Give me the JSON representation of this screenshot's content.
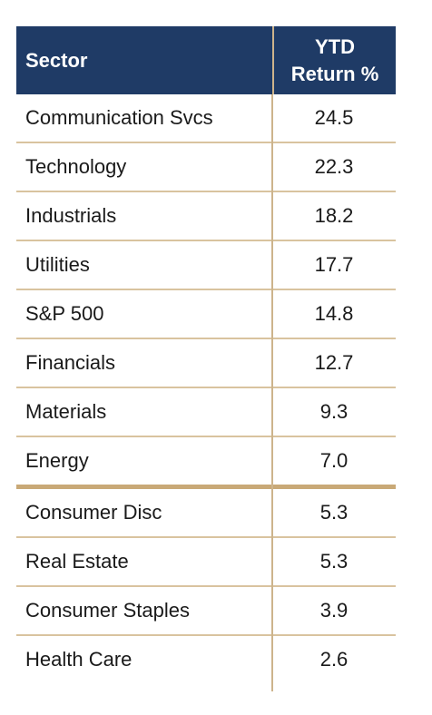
{
  "table": {
    "headers": {
      "sector": "Sector",
      "return_line1": "YTD",
      "return_line2": "Return %"
    },
    "group_top": [
      {
        "sector": "Communication  Svcs",
        "return": "24.5"
      },
      {
        "sector": "Technology",
        "return": "22.3"
      },
      {
        "sector": "Industrials",
        "return": "18.2"
      },
      {
        "sector": "Utilities",
        "return": "17.7"
      },
      {
        "sector": "S&P 500",
        "return": "14.8"
      },
      {
        "sector": "Financials",
        "return": "12.7"
      },
      {
        "sector": "Materials",
        "return": "9.3"
      },
      {
        "sector": "Energy",
        "return": "7.0"
      }
    ],
    "group_bottom": [
      {
        "sector": "Consumer Disc",
        "return": "5.3"
      },
      {
        "sector": "Real Estate",
        "return": "5.3"
      },
      {
        "sector": "Consumer Staples",
        "return": "3.9"
      },
      {
        "sector": "Health Care",
        "return": "2.6"
      }
    ]
  },
  "colors": {
    "header_bg": "#1f3b66",
    "rule": "#d9c39f",
    "thick_rule": "#c9a977"
  }
}
